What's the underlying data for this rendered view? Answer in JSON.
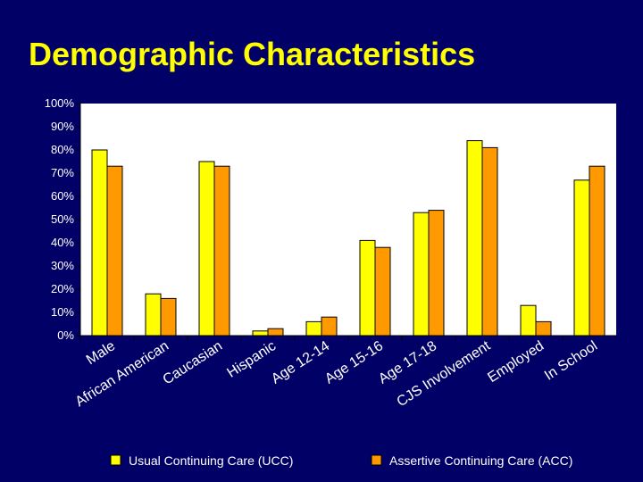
{
  "chart_data": {
    "type": "bar",
    "title": "Demographic Characteristics",
    "xlabel": "",
    "ylabel": "",
    "ylim": [
      0,
      100
    ],
    "yticks": [
      "0%",
      "10%",
      "20%",
      "30%",
      "40%",
      "50%",
      "60%",
      "70%",
      "80%",
      "90%",
      "100%"
    ],
    "categories": [
      "Male",
      "African American",
      "Caucasian",
      "Hispanic",
      "Age 12-14",
      "Age 15-16",
      "Age 17-18",
      "CJS Involvement",
      "Employed",
      "In School"
    ],
    "series": [
      {
        "name": "Usual Continuing Care (UCC)",
        "color": "#ffff00",
        "values": [
          80,
          18,
          75,
          2,
          6,
          41,
          53,
          84,
          13,
          67
        ]
      },
      {
        "name": "Assertive Continuing Care (ACC)",
        "color": "#ff9900",
        "values": [
          73,
          16,
          73,
          3,
          8,
          38,
          54,
          81,
          6,
          73
        ]
      }
    ],
    "legend_position": "bottom",
    "grid": false
  },
  "colors": {
    "background": "#000066",
    "title": "#ffff00",
    "plot_area": "#ffffff"
  }
}
